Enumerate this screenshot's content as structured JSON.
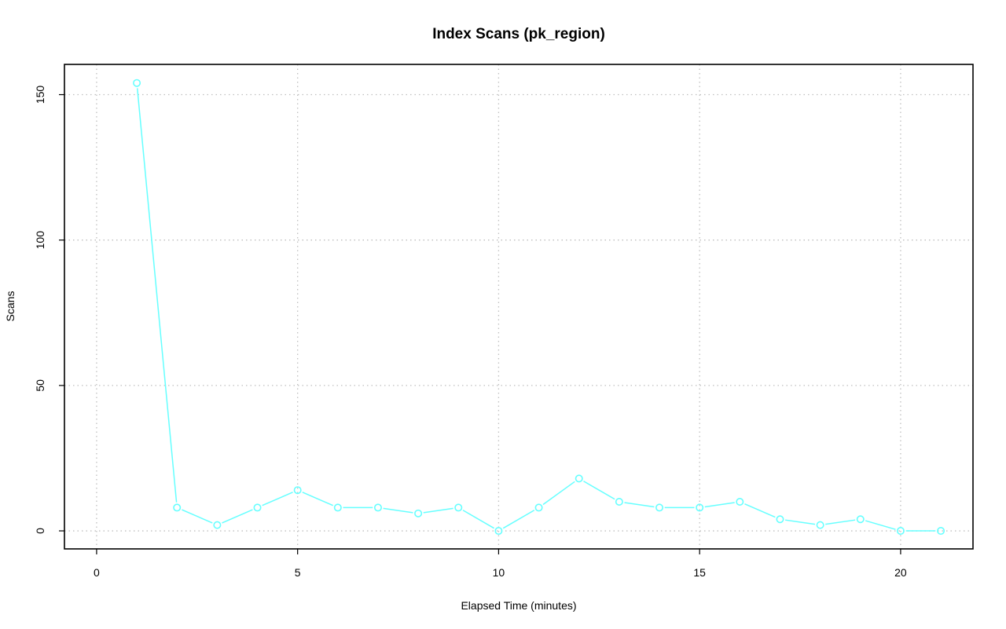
{
  "colors": {
    "series": "#66FFFF",
    "grid": "#bfbfbf",
    "axis": "#000000"
  },
  "chart_data": {
    "type": "line",
    "title": "Index Scans (pk_region)",
    "xlabel": "Elapsed Time (minutes)",
    "ylabel": "Scans",
    "xlim": [
      -0.8,
      21.8
    ],
    "ylim": [
      -6.2,
      160.4
    ],
    "xticks": [
      0,
      5,
      10,
      15,
      20
    ],
    "yticks": [
      0,
      50,
      100,
      150
    ],
    "grid": true,
    "legend": "none",
    "markers": "open-circle",
    "series": [
      {
        "color": "#66FFFF",
        "x": [
          1,
          2,
          3,
          4,
          5,
          6,
          7,
          8,
          9,
          10,
          11,
          12,
          13,
          14,
          15,
          16,
          17,
          18,
          19,
          20,
          21
        ],
        "y": [
          154,
          8,
          2,
          8,
          14,
          8,
          8,
          6,
          8,
          0,
          8,
          18,
          10,
          8,
          8,
          10,
          4,
          2,
          4,
          0,
          0
        ]
      }
    ]
  }
}
